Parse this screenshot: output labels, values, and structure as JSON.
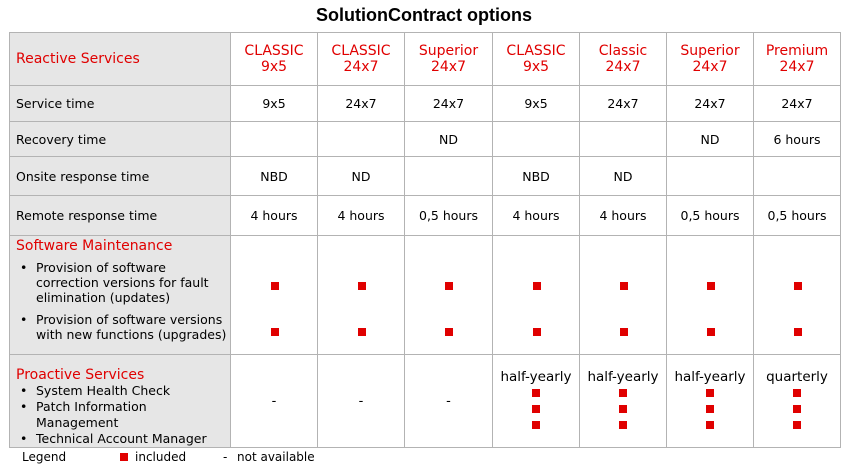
{
  "title": "SolutionContract options",
  "header": {
    "label": "Reactive Services",
    "columns": [
      {
        "line1": "CLASSIC",
        "line2": "9x5"
      },
      {
        "line1": "CLASSIC",
        "line2": "24x7"
      },
      {
        "line1": "Superior",
        "line2": "24x7"
      },
      {
        "line1": "CLASSIC",
        "line2": "9x5"
      },
      {
        "line1": "Classic",
        "line2": "24x7"
      },
      {
        "line1": "Superior",
        "line2": "24x7"
      },
      {
        "line1": "Premium",
        "line2": "24x7"
      }
    ]
  },
  "rows": [
    {
      "label": "Service time",
      "values": [
        "9x5",
        "24x7",
        "24x7",
        "9x5",
        "24x7",
        "24x7",
        "24x7"
      ]
    },
    {
      "label": "Recovery time",
      "values": [
        "",
        "",
        "ND",
        "",
        "",
        "ND",
        "6 hours"
      ]
    },
    {
      "label": "Onsite response  time",
      "values": [
        "NBD",
        "ND",
        "",
        "NBD",
        "ND",
        "",
        ""
      ]
    },
    {
      "label": "Remote response time",
      "values": [
        "4 hours",
        "4 hours",
        "0,5 hours",
        "4 hours",
        "4 hours",
        "0,5 hours",
        "0,5 hours"
      ]
    }
  ],
  "software_maintenance": {
    "title": "Software Maintenance",
    "items": [
      "Provision of software correction versions for fault elimination (updates)",
      "Provision of software versions with new functions (upgrades)"
    ]
  },
  "proactive": {
    "title": "Proactive Services",
    "items": [
      "System Health Check",
      "Patch Information Management",
      "Technical Account Manager"
    ],
    "columns": [
      {
        "head": "",
        "value": "-",
        "marks": 0
      },
      {
        "head": "",
        "value": "-",
        "marks": 0
      },
      {
        "head": "",
        "value": "-",
        "marks": 0
      },
      {
        "head": "half-yearly",
        "value": "",
        "marks": 3
      },
      {
        "head": "half-yearly",
        "value": "",
        "marks": 3
      },
      {
        "head": "half-yearly",
        "value": "",
        "marks": 3
      },
      {
        "head": "quarterly",
        "value": "",
        "marks": 3
      }
    ]
  },
  "legend": {
    "label": "Legend",
    "included": "included",
    "dash_symbol": "-",
    "not_available": "not available"
  },
  "colors": {
    "accent": "#e00000",
    "label_bg": "#e6e6e6",
    "border": "#b3b3b3"
  }
}
